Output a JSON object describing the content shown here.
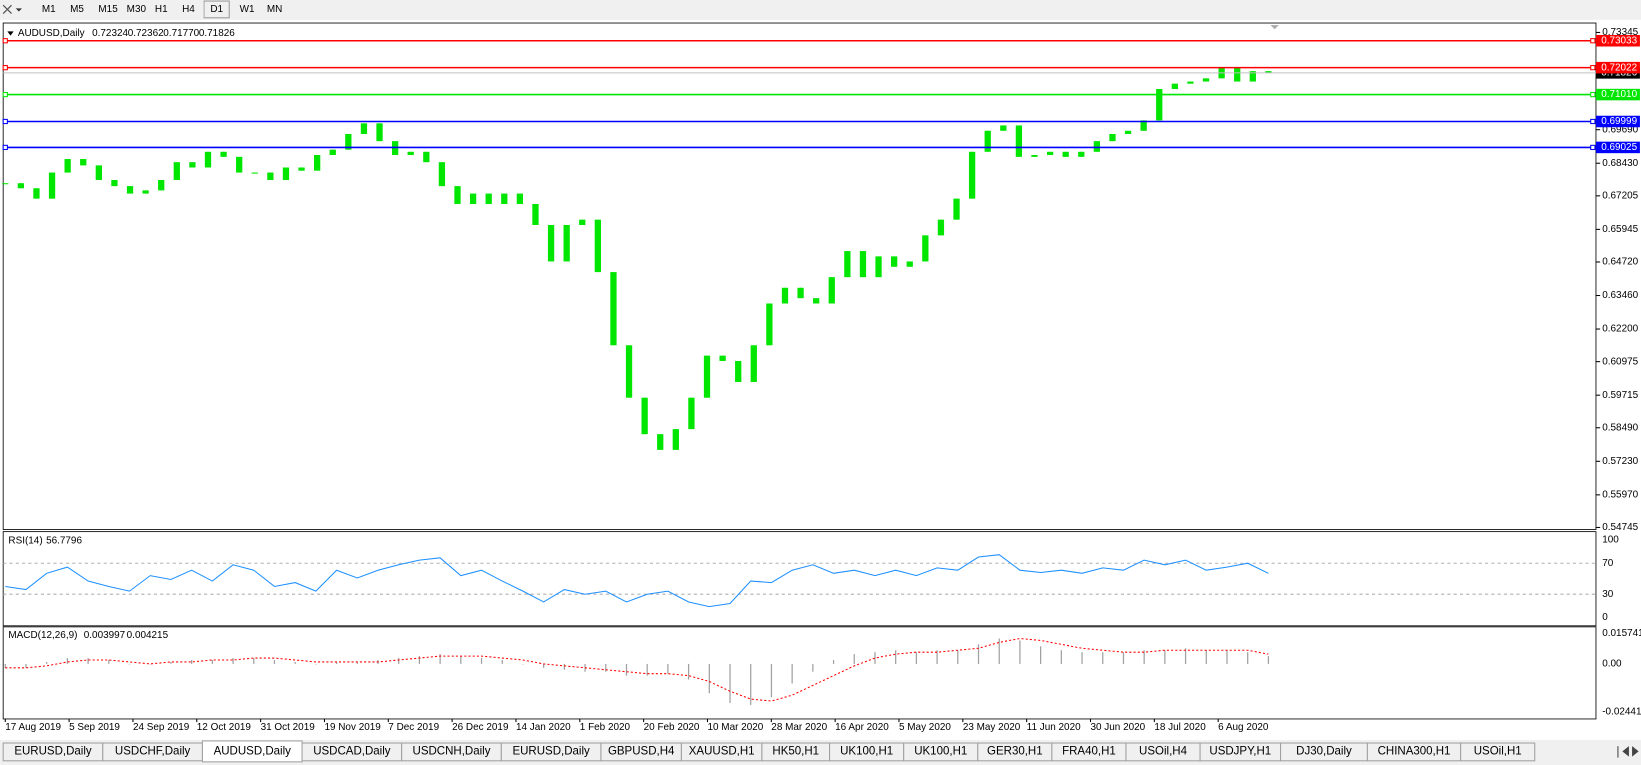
{
  "toolbar": {
    "timeframes": [
      "M1",
      "M5",
      "M15",
      "M30",
      "H1",
      "H4",
      "D1",
      "W1",
      "MN"
    ]
  },
  "chart_data": [
    {
      "type": "candlestick",
      "title": "AUDUSD,Daily",
      "ohlc_header": [
        0.72324,
        0.72362,
        {
          "value": 0.7177,
          "label": "0.71770"
        },
        0.71826
      ],
      "color": "#00e600",
      "closes": [
        0.6768,
        0.6749,
        0.671,
        0.6808,
        0.6859,
        0.6835,
        0.678,
        0.6757,
        0.6729,
        0.6741,
        0.678,
        0.6847,
        0.6827,
        0.6886,
        0.6867,
        0.6808,
        0.6808,
        0.678,
        0.6827,
        0.6815,
        0.6874,
        0.6894,
        0.6953,
        0.6993,
        0.6926,
        0.6874,
        0.6886,
        0.6847,
        0.6757,
        0.669,
        0.6729,
        0.669,
        0.6729,
        0.669,
        0.6611,
        0.6474,
        0.6611,
        0.6631,
        0.6434,
        0.6159,
        0.5962,
        0.5825,
        0.5766,
        0.5844,
        0.5962,
        0.612,
        0.61,
        0.6021,
        0.6159,
        0.6316,
        0.6375,
        0.6336,
        0.6316,
        0.6415,
        0.6513,
        0.6415,
        0.6493,
        0.6454,
        0.6474,
        0.6572,
        0.6631,
        0.671,
        0.6886,
        0.6965,
        0.6985,
        0.6867,
        0.6874,
        0.6886,
        0.6867,
        0.6886,
        0.6926,
        0.6953,
        0.6965,
        0.7004,
        0.7122,
        0.7142,
        0.715,
        0.7162,
        0.7201,
        0.715,
        0.7189,
        0.7183
      ],
      "ylim": [
        0.54745,
        0.73345
      ],
      "yticks": [
        0.73345,
        {
          "value": 0.6969,
          "label": "0.69690"
        },
        {
          "value": 0.6843,
          "label": "0.68430"
        },
        0.67205,
        0.65945,
        {
          "value": 0.6472,
          "label": "0.64720"
        },
        {
          "value": 0.6346,
          "label": "0.63460"
        },
        {
          "value": 0.622,
          "label": "0.62200"
        },
        0.60975,
        0.59715,
        {
          "value": 0.5849,
          "label": "0.58490"
        },
        {
          "value": 0.5723,
          "label": "0.57230"
        },
        {
          "value": 0.5597,
          "label": "0.55970"
        },
        0.54745
      ],
      "levels": [
        {
          "price": 0.73033,
          "color": "#ff0000"
        },
        {
          "price": 0.72022,
          "color": "#ff0000"
        },
        {
          "price": {
            "value": 0.7101,
            "label": "0.71010"
          },
          "color": "#00e600"
        },
        {
          "price": 0.69999,
          "color": "#0000ff"
        },
        {
          "price": 0.69025,
          "color": "#0000ff"
        }
      ],
      "last_price": 0.71826,
      "dates": [
        "17 Aug 2019",
        "5 Sep 2019",
        "24 Sep 2019",
        "12 Oct 2019",
        "31 Oct 2019",
        "19 Nov 2019",
        "7 Dec 2019",
        "26 Dec 2019",
        "14 Jan 2020",
        "1 Feb 2020",
        "20 Feb 2020",
        "10 Mar 2020",
        "28 Mar 2020",
        "16 Apr 2020",
        "5 May 2020",
        "23 May 2020",
        "11 Jun 2020",
        "30 Jun 2020",
        "18 Jul 2020",
        "6 Aug 2020"
      ]
    },
    {
      "type": "line",
      "title": "RSI(14)",
      "value": 56.7796,
      "color": "#1e90ff",
      "values": [
        40,
        36,
        57,
        65,
        47,
        40,
        34,
        54,
        49,
        61,
        47,
        68,
        61,
        40,
        45,
        34,
        61,
        51,
        61,
        68,
        74,
        77,
        54,
        61,
        47,
        34,
        20,
        36,
        30,
        34,
        20,
        30,
        34,
        20,
        14,
        18,
        47,
        45,
        61,
        68,
        57,
        61,
        54,
        61,
        54,
        64,
        61,
        78,
        81,
        61,
        58,
        61,
        57,
        64,
        61,
        74,
        68,
        74,
        61,
        65,
        70,
        57
      ],
      "ylim": [
        0,
        100
      ],
      "yticks": [
        100,
        70,
        30,
        0
      ]
    },
    {
      "type": "macd",
      "title": "MACD(12,26,9)",
      "header_values": [
        0.003997,
        0.004215
      ],
      "series": [
        {
          "name": "MACD",
          "color": "#a0a0a0",
          "values": [
            -0.002,
            -0.002,
            0.001,
            0.003,
            0.003,
            0.002,
            0.0,
            0.0,
            0.001,
            0.002,
            0.002,
            0.003,
            0.003,
            0.002,
            0.001,
            0.0,
            0.001,
            0.001,
            0.002,
            0.003,
            0.004,
            0.005,
            0.004,
            0.003,
            0.002,
            0.0,
            -0.002,
            -0.003,
            -0.004,
            -0.004,
            -0.006,
            -0.006,
            -0.005,
            -0.008,
            -0.015,
            -0.02,
            -0.021,
            -0.017,
            -0.01,
            -0.004,
            0.002,
            0.005,
            0.006,
            0.007,
            0.006,
            0.007,
            0.007,
            0.01,
            0.013,
            0.012,
            0.009,
            0.007,
            0.006,
            0.006,
            0.006,
            0.007,
            0.007,
            0.008,
            0.007,
            0.007,
            0.006,
            0.004
          ]
        },
        {
          "name": "Signal",
          "color": "#ff0000",
          "values": [
            -0.002,
            -0.002,
            -0.001,
            0.001,
            0.002,
            0.002,
            0.001,
            0.0,
            0.001,
            0.001,
            0.002,
            0.002,
            0.003,
            0.003,
            0.002,
            0.001,
            0.001,
            0.001,
            0.001,
            0.002,
            0.003,
            0.004,
            0.004,
            0.004,
            0.003,
            0.002,
            0.0,
            -0.001,
            -0.002,
            -0.003,
            -0.004,
            -0.005,
            -0.005,
            -0.006,
            -0.009,
            -0.014,
            -0.018,
            -0.019,
            -0.016,
            -0.011,
            -0.006,
            -0.001,
            0.003,
            0.005,
            0.006,
            0.006,
            0.007,
            0.008,
            0.011,
            0.013,
            0.012,
            0.01,
            0.008,
            0.007,
            0.006,
            0.006,
            0.007,
            0.007,
            0.007,
            0.007,
            0.007,
            0.005
          ]
        }
      ],
      "ylim": [
        -0.024412,
        0.015741
      ],
      "yticks": [
        0.015741,
        {
          "value": 0,
          "label": "0.00"
        },
        -0.024412
      ]
    }
  ],
  "tabs": {
    "items": [
      "EURUSD,Daily",
      "USDCHF,Daily",
      "AUDUSD,Daily",
      "USDCAD,Daily",
      "USDCNH,Daily",
      "EURUSD,Daily",
      "GBPUSD,H4",
      "XAUUSD,H1",
      "HK50,H1",
      "UK100,H1",
      "UK100,H1",
      "GER30,H1",
      "FRA40,H1",
      "USOil,H4",
      "USDJPY,H1",
      "DJ30,Daily",
      "CHINA300,H1",
      "USOil,H1"
    ],
    "active": 2
  }
}
